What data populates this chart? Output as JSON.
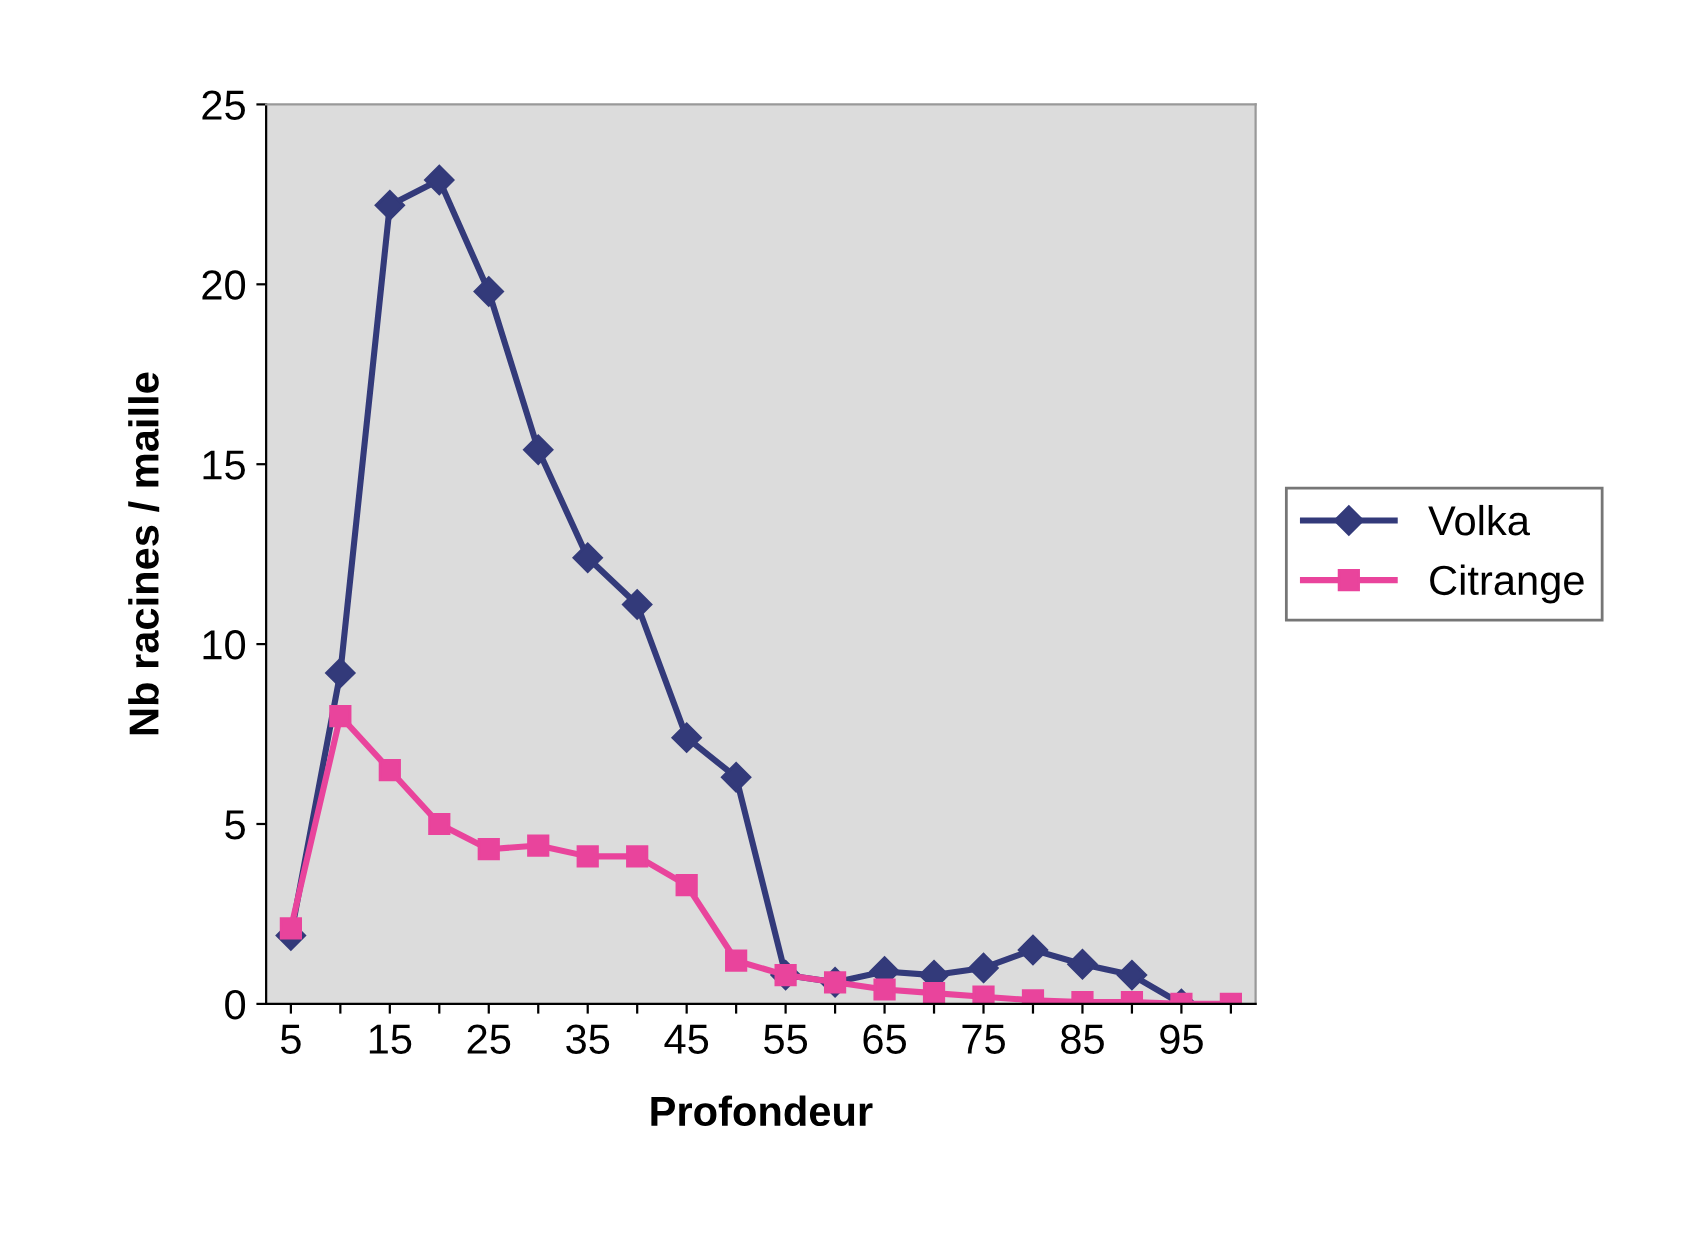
{
  "chart_data": {
    "type": "line",
    "xlabel": "Profondeur",
    "ylabel": "Nb racines / maille",
    "categories": [
      "5",
      null,
      "15",
      null,
      "25",
      null,
      "35",
      null,
      "45",
      null,
      "55",
      null,
      "65",
      null,
      "75",
      null,
      "85",
      null,
      "95",
      null
    ],
    "series": [
      {
        "name": "Volka",
        "color": "#333a7a",
        "marker": "diamond",
        "values": [
          1.9,
          9.2,
          22.2,
          22.9,
          19.8,
          15.4,
          12.4,
          11.1,
          7.4,
          6.3,
          0.8,
          0.6,
          0.9,
          0.8,
          1.0,
          1.5,
          1.1,
          0.8,
          0,
          null
        ]
      },
      {
        "name": "Citrange",
        "color": "#e9449c",
        "marker": "square",
        "values": [
          2.1,
          8.0,
          6.5,
          5.0,
          4.3,
          4.4,
          4.1,
          4.1,
          3.3,
          1.2,
          0.8,
          0.6,
          0.4,
          0.3,
          0.2,
          0.1,
          0.05,
          0.05,
          0,
          0
        ]
      }
    ],
    "ylim": [
      0,
      25
    ],
    "yticks": [
      0,
      5,
      10,
      15,
      20,
      25
    ],
    "grid": false,
    "legend": "right",
    "line_style": "solid"
  }
}
